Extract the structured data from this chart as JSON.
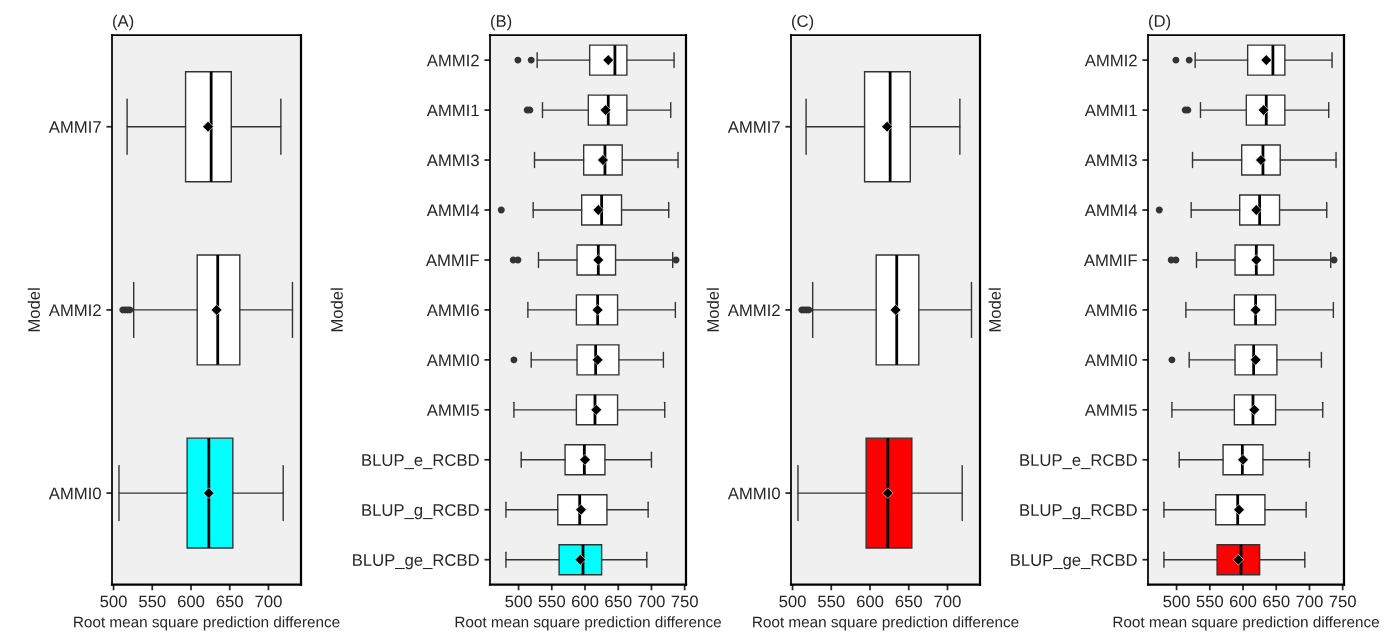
{
  "chart_data": [
    {
      "type": "box",
      "title": "(A)",
      "orientation": "horizontal",
      "xlabel": "Root mean square prediction difference",
      "ylabel": "Model",
      "categories": [
        "AMMI7",
        "AMMI2",
        "AMMI0"
      ],
      "xlim": [
        498,
        742
      ],
      "xticks": [
        500,
        550,
        600,
        650,
        700
      ],
      "colors": [
        "#ffffff",
        "#ffffff",
        "#00ffff"
      ],
      "marker": "diamond",
      "grid": false,
      "boxes": [
        {
          "low": 517.5,
          "q1": 593,
          "median": 626,
          "q3": 652,
          "high": 716,
          "mean": 622
        },
        {
          "low": 526,
          "q1": 608,
          "median": 634.5,
          "q3": 663,
          "high": 731,
          "mean": 633,
          "outliers": [
            512,
            515,
            518,
            521
          ]
        },
        {
          "low": 507,
          "q1": 595,
          "median": 623,
          "q3": 654,
          "high": 719,
          "mean": 623
        }
      ]
    },
    {
      "type": "box",
      "title": "(B)",
      "orientation": "horizontal",
      "xlabel": "Root mean square prediction difference",
      "ylabel": "Model",
      "categories": [
        "AMMI2",
        "AMMI1",
        "AMMI3",
        "AMMI4",
        "AMMIF",
        "AMMI6",
        "AMMI0",
        "AMMI5",
        "BLUP_e_RCBD",
        "BLUP_g_RCBD",
        "BLUP_ge_RCBD"
      ],
      "xlim": [
        457,
        752
      ],
      "xticks": [
        500,
        550,
        600,
        650,
        700,
        750
      ],
      "colors": [
        "#ffffff",
        "#ffffff",
        "#ffffff",
        "#ffffff",
        "#ffffff",
        "#ffffff",
        "#ffffff",
        "#ffffff",
        "#ffffff",
        "#ffffff",
        "#00ffff"
      ],
      "marker": "diamond",
      "grid": false,
      "boxes": [
        {
          "low": 528,
          "q1": 607,
          "median": 645,
          "q3": 663,
          "high": 734,
          "mean": 635,
          "outliers": [
            499,
            519
          ]
        },
        {
          "low": 536,
          "q1": 605,
          "median": 635,
          "q3": 663,
          "high": 729,
          "mean": 631,
          "outliers": [
            513,
            517
          ]
        },
        {
          "low": 524,
          "q1": 598,
          "median": 630,
          "q3": 656,
          "high": 740,
          "mean": 627
        },
        {
          "low": 522,
          "q1": 595,
          "median": 625,
          "q3": 655,
          "high": 726,
          "mean": 620,
          "outliers": [
            474
          ]
        },
        {
          "low": 530,
          "q1": 588,
          "median": 620,
          "q3": 646,
          "high": 732,
          "mean": 620,
          "outliers": [
            492,
            499,
            737
          ]
        },
        {
          "low": 514,
          "q1": 587,
          "median": 619,
          "q3": 649,
          "high": 736,
          "mean": 619
        },
        {
          "low": 519,
          "q1": 588,
          "median": 616,
          "q3": 651,
          "high": 718,
          "mean": 619,
          "outliers": [
            493
          ]
        },
        {
          "low": 493,
          "q1": 587,
          "median": 615,
          "q3": 649,
          "high": 720,
          "mean": 617
        },
        {
          "low": 504,
          "q1": 570,
          "median": 599,
          "q3": 630,
          "high": 700,
          "mean": 600
        },
        {
          "low": 481,
          "q1": 559,
          "median": 592,
          "q3": 633,
          "high": 695,
          "mean": 594
        },
        {
          "low": 481,
          "q1": 561,
          "median": 597,
          "q3": 625,
          "high": 693,
          "mean": 593
        }
      ]
    },
    {
      "type": "box",
      "title": "(C)",
      "orientation": "horizontal",
      "xlabel": "Root mean square prediction difference",
      "ylabel": "Model",
      "categories": [
        "AMMI7",
        "AMMI2",
        "AMMI0"
      ],
      "xlim": [
        498,
        742
      ],
      "xticks": [
        500,
        550,
        600,
        650,
        700
      ],
      "colors": [
        "#ffffff",
        "#ffffff",
        "#ff0000"
      ],
      "marker": "diamond",
      "grid": false,
      "boxes": [
        {
          "low": 517.5,
          "q1": 593,
          "median": 626,
          "q3": 652,
          "high": 716,
          "mean": 622
        },
        {
          "low": 526,
          "q1": 608,
          "median": 634.5,
          "q3": 663,
          "high": 731,
          "mean": 633,
          "outliers": [
            512,
            515,
            518,
            521
          ]
        },
        {
          "low": 507,
          "q1": 595,
          "median": 623,
          "q3": 654,
          "high": 719,
          "mean": 623
        }
      ]
    },
    {
      "type": "box",
      "title": "(D)",
      "orientation": "horizontal",
      "xlabel": "Root mean square prediction difference",
      "ylabel": "Model",
      "categories": [
        "AMMI2",
        "AMMI1",
        "AMMI3",
        "AMMI4",
        "AMMIF",
        "AMMI6",
        "AMMI0",
        "AMMI5",
        "BLUP_e_RCBD",
        "BLUP_g_RCBD",
        "BLUP_ge_RCBD"
      ],
      "xlim": [
        457,
        752
      ],
      "xticks": [
        500,
        550,
        600,
        650,
        700,
        750
      ],
      "colors": [
        "#ffffff",
        "#ffffff",
        "#ffffff",
        "#ffffff",
        "#ffffff",
        "#ffffff",
        "#ffffff",
        "#ffffff",
        "#ffffff",
        "#ffffff",
        "#ff0000"
      ],
      "marker": "diamond",
      "grid": false,
      "boxes": [
        {
          "low": 528,
          "q1": 607,
          "median": 645,
          "q3": 663,
          "high": 734,
          "mean": 635,
          "outliers": [
            499,
            519
          ]
        },
        {
          "low": 536,
          "q1": 605,
          "median": 635,
          "q3": 663,
          "high": 729,
          "mean": 631,
          "outliers": [
            513,
            517
          ]
        },
        {
          "low": 524,
          "q1": 598,
          "median": 630,
          "q3": 656,
          "high": 740,
          "mean": 627
        },
        {
          "low": 522,
          "q1": 595,
          "median": 625,
          "q3": 655,
          "high": 726,
          "mean": 620,
          "outliers": [
            474
          ]
        },
        {
          "low": 530,
          "q1": 588,
          "median": 620,
          "q3": 646,
          "high": 732,
          "mean": 620,
          "outliers": [
            492,
            499,
            737
          ]
        },
        {
          "low": 514,
          "q1": 587,
          "median": 619,
          "q3": 649,
          "high": 736,
          "mean": 619
        },
        {
          "low": 519,
          "q1": 588,
          "median": 616,
          "q3": 651,
          "high": 718,
          "mean": 619,
          "outliers": [
            493
          ]
        },
        {
          "low": 493,
          "q1": 587,
          "median": 615,
          "q3": 649,
          "high": 720,
          "mean": 617
        },
        {
          "low": 504,
          "q1": 570,
          "median": 599,
          "q3": 630,
          "high": 700,
          "mean": 600
        },
        {
          "low": 481,
          "q1": 559,
          "median": 592,
          "q3": 633,
          "high": 695,
          "mean": 594
        },
        {
          "low": 481,
          "q1": 561,
          "median": 597,
          "q3": 625,
          "high": 693,
          "mean": 593
        }
      ]
    }
  ]
}
